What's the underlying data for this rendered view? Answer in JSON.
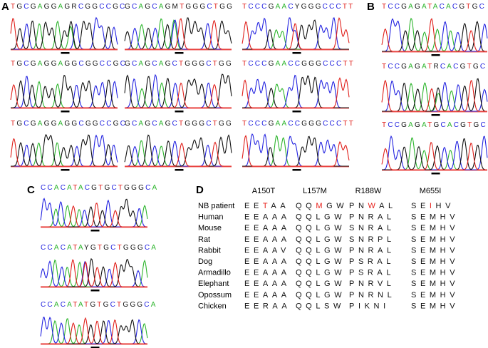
{
  "panel_a": {
    "label": "A",
    "columns": [
      [
        "TGCGAGGAGRCGGCCGC",
        "TGCGAGGAGGCGGCCGC",
        "TGCGAGGAGGCGGCCGC"
      ],
      [
        "GCAGCAGMTGGGCTGG",
        "GCAGCAGCTGGGCTGG",
        "GCAGCAGCTGGGCTGG"
      ],
      [
        "TCCCGAACYGGGCCCTT",
        "TCCCGAACCGGGCCCTT",
        "TCCCGAACCGGGCCCTT"
      ]
    ]
  },
  "panel_b": {
    "label": "B",
    "sequences": [
      "TCCGAGATACACGTGC",
      "TCCGAGATRCACGTGC",
      "TCCGAGATGCACGTGC"
    ]
  },
  "panel_c": {
    "label": "C",
    "sequences": [
      "CCACATACGTGCTGGGCA",
      "CCACATAYGTGCTGGGCA",
      "CCACATATGTGCTGGGCA"
    ]
  },
  "panel_d": {
    "label": "D",
    "headers": [
      "A150T",
      "L157M",
      "R188W",
      "M655I"
    ],
    "rows": [
      {
        "name": "NB patient",
        "residues": [
          "EETAA",
          "QQMGW",
          "PNWAL",
          "SEIHV"
        ]
      },
      {
        "name": "Human",
        "residues": [
          "EEAAA",
          "QQLGW",
          "PNRAL",
          "SEMHV"
        ]
      },
      {
        "name": "Mouse",
        "residues": [
          "EEAAA",
          "QQLGW",
          "SNRAL",
          "SEMHV"
        ]
      },
      {
        "name": "Rat",
        "residues": [
          "EEAAA",
          "QQLGW",
          "SNRPL",
          "SEMHV"
        ]
      },
      {
        "name": "Rabbit",
        "residues": [
          "EEAAV",
          "QQLGW",
          "PNRAL",
          "SEMHV"
        ]
      },
      {
        "name": "Dog",
        "residues": [
          "EEAAA",
          "QQLGW",
          "PSRAL",
          "SEMHV"
        ]
      },
      {
        "name": "Armadillo",
        "residues": [
          "EEAAA",
          "QQLGW",
          "PSRAL",
          "SEMHV"
        ]
      },
      {
        "name": "Elephant",
        "residues": [
          "EEAAA",
          "QQLGW",
          "PNRVL",
          "SEMHV"
        ]
      },
      {
        "name": "Opossum",
        "residues": [
          "EEAAA",
          "QQLGW",
          "PNRNL",
          "SEMHV"
        ]
      },
      {
        "name": "Chicken",
        "residues": [
          "EERAA",
          "QQLSW",
          "PIKNI",
          "SEMHV"
        ]
      }
    ]
  }
}
